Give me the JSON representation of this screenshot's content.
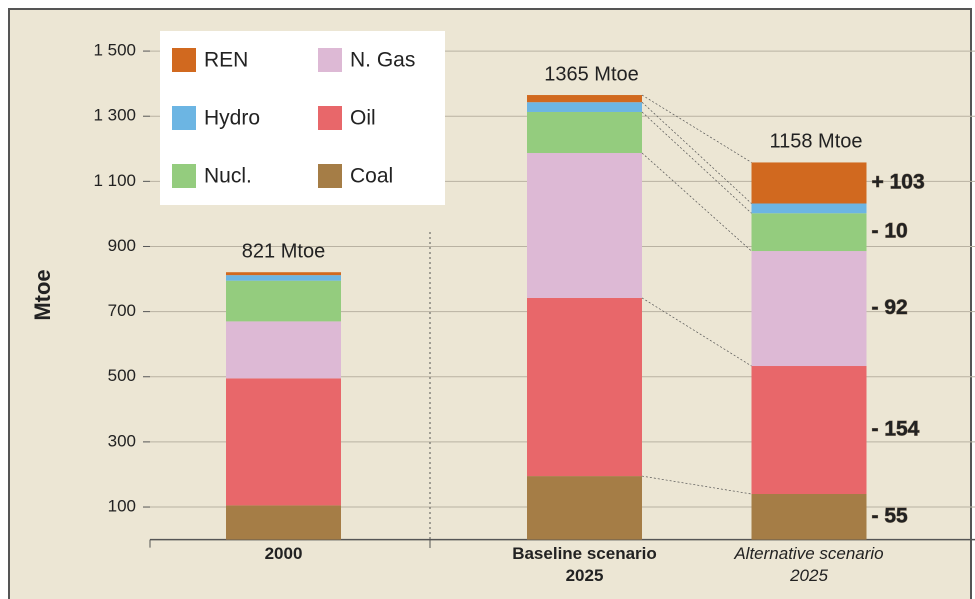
{
  "chart_data": {
    "type": "stacked_bar",
    "ylabel": "Mtoe",
    "categories": [
      "2000",
      "Baseline scenario 2025",
      "Alternative scenario 2025"
    ],
    "series": [
      {
        "name": "Coal",
        "color": "#a57d46",
        "values": [
          105,
          195,
          140
        ],
        "change_label": "- 55"
      },
      {
        "name": "Oil",
        "color": "#e8676a",
        "values": [
          390,
          547,
          393
        ],
        "change_label": "- 154"
      },
      {
        "name": "N. Gas",
        "color": "#ddb9d5",
        "values": [
          175,
          445,
          353
        ],
        "change_label": "- 92"
      },
      {
        "name": "Nucl.",
        "color": "#94cc7e",
        "values": [
          125,
          126,
          116
        ],
        "change_label": "- 10"
      },
      {
        "name": "Hydro",
        "color": "#6cb5e3",
        "values": [
          17,
          30,
          30
        ]
      },
      {
        "name": "REN",
        "color": "#d1691f",
        "values": [
          9,
          22,
          126
        ],
        "change_label": "+ 103"
      }
    ],
    "totals": {
      "values": [
        821,
        1365,
        1158
      ],
      "value_labels": [
        "821 Mtoe",
        "1365 Mtoe",
        "1158 Mtoe"
      ]
    },
    "ylim": [
      0,
      1600
    ],
    "yticks": [
      100,
      300,
      500,
      700,
      900,
      {
        "value": 1100,
        "label": "1 100"
      },
      {
        "value": 1300,
        "label": "1 300"
      },
      {
        "value": 1500,
        "label": "1 500"
      }
    ],
    "grid": true
  }
}
